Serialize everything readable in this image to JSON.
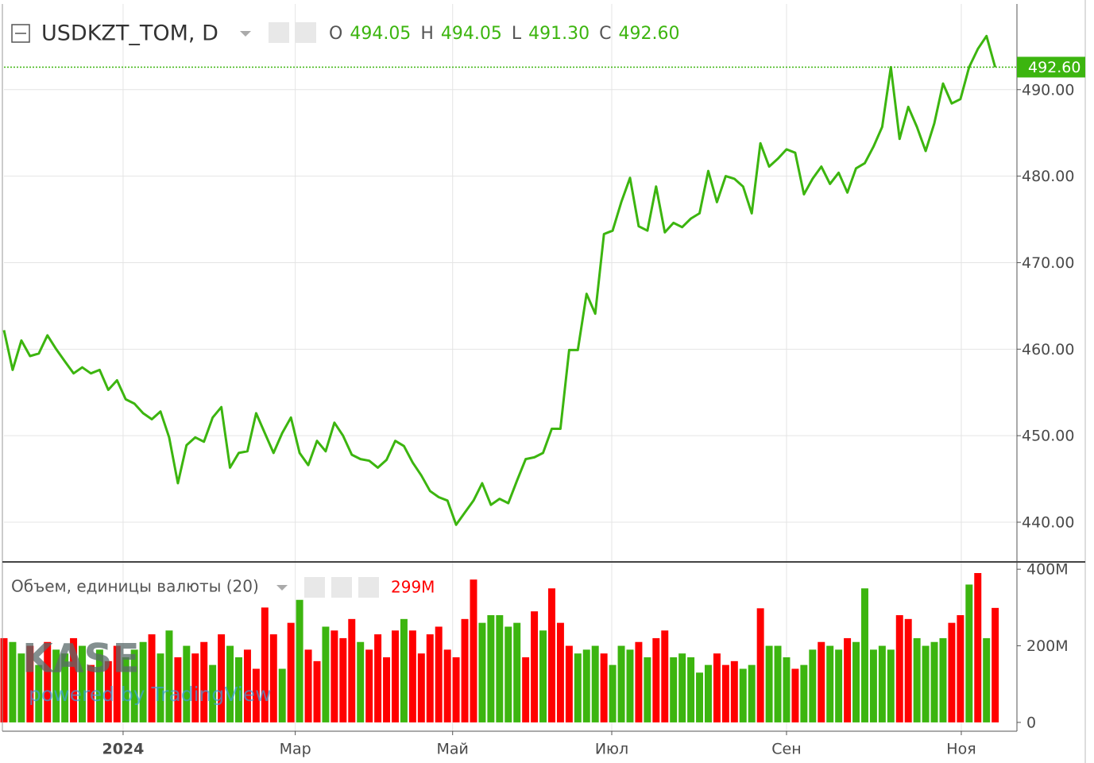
{
  "chart_data": [
    {
      "type": "line",
      "title": "USDKZT_TOM, D",
      "color": "#3cb50f",
      "ohlc": [
        {
          "name": "O",
          "value": 494.05,
          "label": "494.05"
        },
        {
          "name": "H",
          "value": 494.05,
          "label": "494.05"
        },
        {
          "name": "L",
          "value": 491.3,
          "label": "491.30"
        },
        {
          "name": "C",
          "value": 492.6,
          "label": "492.60"
        }
      ],
      "last_price": {
        "value": 492.6,
        "label": "492.60"
      },
      "values": [
        462.2,
        457.6,
        461,
        459.2,
        459.5,
        461.6,
        460,
        458.6,
        457.2,
        457.9,
        457.2,
        457.6,
        455.3,
        456.4,
        454.2,
        453.7,
        452.6,
        451.9,
        452.8,
        449.8,
        444.5,
        448.9,
        449.8,
        449.3,
        452.1,
        453.3,
        446.3,
        448,
        448.2,
        452.6,
        450.3,
        448,
        450.3,
        452.1,
        448,
        446.6,
        449.4,
        448.2,
        451.5,
        450,
        447.8,
        447.3,
        447.1,
        446.3,
        447.2,
        449.4,
        448.8,
        446.9,
        445.4,
        443.6,
        442.9,
        442.5,
        439.7,
        441.1,
        442.5,
        444.5,
        442,
        442.7,
        442.2,
        444.8,
        447.3,
        447.5,
        448,
        450.8,
        450.8,
        459.9,
        459.9,
        466.4,
        464.1,
        473.3,
        473.7,
        477,
        479.8,
        474.2,
        473.7,
        478.8,
        473.5,
        474.6,
        474.1,
        475.1,
        475.7,
        480.6,
        477,
        480,
        479.7,
        478.8,
        475.7,
        483.8,
        481.1,
        482,
        483.1,
        482.7,
        477.9,
        479.7,
        481.1,
        479.1,
        480.4,
        478.1,
        480.9,
        481.5,
        483.4,
        485.7,
        492.6,
        484.3,
        488,
        485.7,
        482.9,
        486.1,
        490.7,
        488.4,
        488.9,
        492.6,
        494.7,
        496.2,
        492.6
      ],
      "xlim": [
        0,
        116.5
      ],
      "xticks": [
        {
          "value": 13.7,
          "label": "2024"
        },
        {
          "value": 33.5,
          "label": "Мар"
        },
        {
          "value": 51.6,
          "label": "Май"
        },
        {
          "value": 69.9,
          "label": "Июл"
        },
        {
          "value": 90.0,
          "label": "Сен"
        },
        {
          "value": 110.1,
          "label": "Ноя"
        }
      ],
      "ylim": [
        435.5,
        499.9
      ],
      "yticks": [
        {
          "value": 440,
          "label": "440.00"
        },
        {
          "value": 450,
          "label": "450.00"
        },
        {
          "value": 460,
          "label": "460.00"
        },
        {
          "value": 470,
          "label": "470.00"
        },
        {
          "value": 480,
          "label": "480.00"
        },
        {
          "value": 490,
          "label": "490.00"
        }
      ],
      "grid": true,
      "watermark": {
        "logo": "KASE",
        "text": "powered by TradingView"
      }
    },
    {
      "type": "bar",
      "title": "Объем, единицы валюты (20)",
      "last_value_label": "299M",
      "values": [
        220000000,
        210000000,
        180000000,
        200000000,
        150000000,
        210000000,
        190000000,
        180000000,
        220000000,
        200000000,
        150000000,
        190000000,
        160000000,
        200000000,
        170000000,
        190000000,
        210000000,
        230000000,
        180000000,
        240000000,
        170000000,
        200000000,
        180000000,
        210000000,
        150000000,
        230000000,
        200000000,
        170000000,
        190000000,
        140000000,
        300000000,
        230000000,
        140000000,
        260000000,
        320000000,
        190000000,
        160000000,
        250000000,
        240000000,
        220000000,
        270000000,
        210000000,
        190000000,
        230000000,
        170000000,
        240000000,
        270000000,
        240000000,
        180000000,
        230000000,
        250000000,
        190000000,
        170000000,
        270000000,
        373000000,
        260000000,
        280000000,
        280000000,
        250000000,
        260000000,
        170000000,
        290000000,
        240000000,
        350000000,
        260000000,
        200000000,
        180000000,
        190000000,
        200000000,
        180000000,
        150000000,
        200000000,
        190000000,
        210000000,
        170000000,
        220000000,
        240000000,
        170000000,
        180000000,
        170000000,
        130000000,
        150000000,
        180000000,
        150000000,
        160000000,
        140000000,
        150000000,
        298000000,
        200000000,
        200000000,
        170000000,
        140000000,
        150000000,
        190000000,
        210000000,
        200000000,
        190000000,
        220000000,
        210000000,
        350000000,
        190000000,
        200000000,
        190000000,
        280000000,
        270000000,
        220000000,
        200000000,
        210000000,
        220000000,
        260000000,
        280000000,
        360000000,
        390000000,
        220000000,
        299000000
      ],
      "colors": [
        "#ff0000",
        "#3cb50f",
        "#3cb50f",
        "#ff0000",
        "#3cb50f",
        "#ff0000",
        "#3cb50f",
        "#3cb50f",
        "#ff0000",
        "#3cb50f",
        "#ff0000",
        "#3cb50f",
        "#ff0000",
        "#ff0000",
        "#3cb50f",
        "#3cb50f",
        "#3cb50f",
        "#ff0000",
        "#3cb50f",
        "#3cb50f",
        "#ff0000",
        "#3cb50f",
        "#ff0000",
        "#ff0000",
        "#3cb50f",
        "#ff0000",
        "#3cb50f",
        "#3cb50f",
        "#ff0000",
        "#ff0000",
        "#ff0000",
        "#ff0000",
        "#3cb50f",
        "#ff0000",
        "#3cb50f",
        "#ff0000",
        "#ff0000",
        "#3cb50f",
        "#ff0000",
        "#ff0000",
        "#ff0000",
        "#3cb50f",
        "#ff0000",
        "#ff0000",
        "#ff0000",
        "#ff0000",
        "#3cb50f",
        "#ff0000",
        "#ff0000",
        "#ff0000",
        "#ff0000",
        "#ff0000",
        "#ff0000",
        "#ff0000",
        "#ff0000",
        "#3cb50f",
        "#3cb50f",
        "#3cb50f",
        "#3cb50f",
        "#3cb50f",
        "#ff0000",
        "#ff0000",
        "#3cb50f",
        "#ff0000",
        "#ff0000",
        "#ff0000",
        "#3cb50f",
        "#3cb50f",
        "#3cb50f",
        "#ff0000",
        "#3cb50f",
        "#3cb50f",
        "#3cb50f",
        "#ff0000",
        "#3cb50f",
        "#ff0000",
        "#ff0000",
        "#3cb50f",
        "#3cb50f",
        "#3cb50f",
        "#3cb50f",
        "#3cb50f",
        "#ff0000",
        "#ff0000",
        "#ff0000",
        "#3cb50f",
        "#3cb50f",
        "#ff0000",
        "#3cb50f",
        "#3cb50f",
        "#3cb50f",
        "#ff0000",
        "#3cb50f",
        "#3cb50f",
        "#ff0000",
        "#3cb50f",
        "#3cb50f",
        "#ff0000",
        "#3cb50f",
        "#3cb50f",
        "#3cb50f",
        "#3cb50f",
        "#3cb50f",
        "#ff0000",
        "#ff0000",
        "#3cb50f",
        "#3cb50f",
        "#3cb50f",
        "#3cb50f",
        "#ff0000",
        "#ff0000",
        "#3cb50f",
        "#ff0000",
        "#3cb50f",
        "#ff0000"
      ],
      "ylim": [
        -23000000,
        417000000
      ],
      "yticks": [
        0,
        {
          "value": 200000000,
          "label": "200M"
        },
        {
          "value": 400000000,
          "label": "400M"
        }
      ]
    }
  ]
}
